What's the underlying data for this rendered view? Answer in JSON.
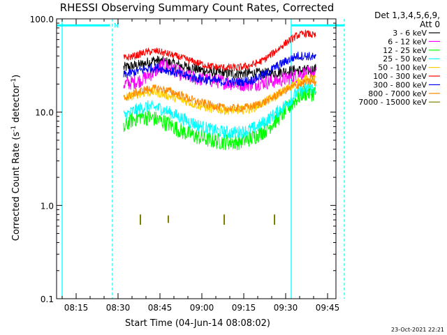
{
  "chart_data": {
    "type": "line",
    "title": "RHESSI Observing Summary Count Rates, Corrected",
    "xlabel": "Start Time (04-Jun-14 08:08:02)",
    "ylabel_main": "Corrected Count Rate (s",
    "ylabel_sup": "-1",
    "ylabel_tail": " detector",
    "ylabel_sup2": "-1",
    "ylabel_close": ")",
    "y_scale": "log",
    "ylim": [
      0.1,
      100
    ],
    "xlim": [
      "08:08",
      "09:48"
    ],
    "x_ticks": [
      {
        "t": 15,
        "label": "08:15"
      },
      {
        "t": 30,
        "label": "08:30"
      },
      {
        "t": 45,
        "label": "08:45"
      },
      {
        "t": 60,
        "label": "09:00"
      },
      {
        "t": 75,
        "label": "09:15"
      },
      {
        "t": 90,
        "label": "09:30"
      },
      {
        "t": 105,
        "label": "09:45"
      }
    ],
    "y_ticks": [
      {
        "v": 100,
        "label": "100.0"
      },
      {
        "v": 10,
        "label": "10.0"
      },
      {
        "v": 1,
        "label": "1.0"
      },
      {
        "v": 0.1,
        "label": "0.1"
      }
    ],
    "legend_header": [
      "Det 1,3,4,5,6,9,",
      "Att 0"
    ],
    "legend_position": "right",
    "series": [
      {
        "name": "3 - 6 keV",
        "color": "#000000",
        "noise": 0.06,
        "points": [
          [
            24,
            30
          ],
          [
            30,
            32
          ],
          [
            35,
            36
          ],
          [
            40,
            34
          ],
          [
            45,
            31
          ],
          [
            50,
            29
          ],
          [
            55,
            27
          ],
          [
            60,
            26
          ],
          [
            65,
            26
          ],
          [
            70,
            26
          ],
          [
            75,
            26
          ],
          [
            80,
            27
          ],
          [
            85,
            28
          ],
          [
            90,
            28
          ],
          [
            93,
            29
          ]
        ]
      },
      {
        "name": "6 - 12 keV",
        "color": "#ff00ff",
        "noise": 0.08,
        "points": [
          [
            24,
            20
          ],
          [
            28,
            21
          ],
          [
            30,
            22
          ],
          [
            35,
            27
          ],
          [
            38,
            32
          ],
          [
            40,
            31
          ],
          [
            45,
            25
          ],
          [
            50,
            23
          ],
          [
            55,
            22
          ],
          [
            60,
            21
          ],
          [
            65,
            20
          ],
          [
            70,
            20
          ],
          [
            75,
            21
          ],
          [
            80,
            22
          ],
          [
            85,
            24
          ],
          [
            88,
            26
          ],
          [
            90,
            26
          ],
          [
            93,
            26
          ]
        ]
      },
      {
        "name": "12 - 25 keV",
        "color": "#00ff00",
        "noise": 0.09,
        "points": [
          [
            24,
            6.5
          ],
          [
            26,
            8
          ],
          [
            30,
            9
          ],
          [
            35,
            8.5
          ],
          [
            40,
            7.5
          ],
          [
            45,
            6.2
          ],
          [
            50,
            5.5
          ],
          [
            55,
            5
          ],
          [
            60,
            4.8
          ],
          [
            65,
            4.8
          ],
          [
            70,
            5.3
          ],
          [
            75,
            6.5
          ],
          [
            80,
            9
          ],
          [
            85,
            13
          ],
          [
            88,
            16
          ],
          [
            90,
            16
          ],
          [
            93,
            16
          ]
        ]
      },
      {
        "name": "25 - 50 keV",
        "color": "#00ffff",
        "noise": 0.07,
        "points": [
          [
            24,
            9
          ],
          [
            28,
            10.5
          ],
          [
            32,
            11.5
          ],
          [
            37,
            11
          ],
          [
            42,
            9.5
          ],
          [
            47,
            8
          ],
          [
            52,
            7
          ],
          [
            57,
            6.3
          ],
          [
            62,
            6
          ],
          [
            67,
            6.2
          ],
          [
            72,
            7
          ],
          [
            77,
            9
          ],
          [
            82,
            12
          ],
          [
            86,
            16
          ],
          [
            90,
            18
          ],
          [
            93,
            18
          ]
        ]
      },
      {
        "name": "50 - 100 keV",
        "color": "#ffcc00",
        "noise": 0.05,
        "points": [
          [
            24,
            14
          ],
          [
            30,
            16
          ],
          [
            35,
            16.5
          ],
          [
            40,
            15
          ],
          [
            45,
            13.5
          ],
          [
            50,
            12
          ],
          [
            55,
            11
          ],
          [
            60,
            10.5
          ],
          [
            65,
            10.5
          ],
          [
            70,
            11
          ],
          [
            75,
            13
          ],
          [
            80,
            16
          ],
          [
            85,
            20
          ],
          [
            90,
            23
          ],
          [
            93,
            23
          ]
        ]
      },
      {
        "name": "100 - 300 keV",
        "color": "#ff0000",
        "noise": 0.04,
        "points": [
          [
            24,
            38
          ],
          [
            28,
            40
          ],
          [
            32,
            44
          ],
          [
            36,
            45
          ],
          [
            40,
            42
          ],
          [
            45,
            38
          ],
          [
            50,
            34
          ],
          [
            55,
            31
          ],
          [
            60,
            30
          ],
          [
            65,
            30
          ],
          [
            70,
            32
          ],
          [
            74,
            36
          ],
          [
            78,
            44
          ],
          [
            82,
            55
          ],
          [
            86,
            66
          ],
          [
            89,
            70
          ],
          [
            91,
            68
          ],
          [
            93,
            65
          ]
        ]
      },
      {
        "name": "300 - 800 keV",
        "color": "#0000ff",
        "noise": 0.05,
        "points": [
          [
            24,
            25
          ],
          [
            28,
            27
          ],
          [
            32,
            29
          ],
          [
            36,
            30
          ],
          [
            40,
            28
          ],
          [
            45,
            25
          ],
          [
            50,
            23
          ],
          [
            55,
            22
          ],
          [
            60,
            21
          ],
          [
            65,
            21
          ],
          [
            70,
            22
          ],
          [
            74,
            25
          ],
          [
            78,
            30
          ],
          [
            82,
            35
          ],
          [
            86,
            40
          ],
          [
            90,
            40
          ],
          [
            93,
            38
          ]
        ]
      },
      {
        "name": "800 - 7000 keV",
        "color": "#ff8800",
        "noise": 0.045,
        "points": [
          [
            24,
            14
          ],
          [
            28,
            16
          ],
          [
            32,
            17.5
          ],
          [
            36,
            18
          ],
          [
            40,
            17
          ],
          [
            45,
            15
          ],
          [
            50,
            13
          ],
          [
            55,
            12
          ],
          [
            60,
            11
          ],
          [
            65,
            11
          ],
          [
            70,
            11.5
          ],
          [
            75,
            13
          ],
          [
            80,
            16
          ],
          [
            85,
            19
          ],
          [
            90,
            21
          ],
          [
            93,
            21
          ]
        ]
      },
      {
        "name": "7000 - 15000 keV",
        "color": "#808000",
        "noise": 0.0,
        "spikes": [
          [
            30,
            0.62,
            0.8
          ],
          [
            40,
            0.65,
            0.78
          ],
          [
            60,
            0.62,
            0.8
          ],
          [
            78,
            0.62,
            0.8
          ]
        ],
        "points": []
      }
    ],
    "annotations": {
      "solid_vlines_t": [
        2,
        84
      ],
      "dashed_vlines_t": [
        20,
        103
      ],
      "solid_vlines_color": "#00ffff",
      "flag_bars": [
        [
          0,
          19
        ],
        [
          84,
          103
        ]
      ],
      "flag_bar_value": 85,
      "flag_label": "N",
      "flag_label_t": 20.5
    }
  },
  "footer": {
    "timestamp": "23-Oct-2021 22:21"
  }
}
